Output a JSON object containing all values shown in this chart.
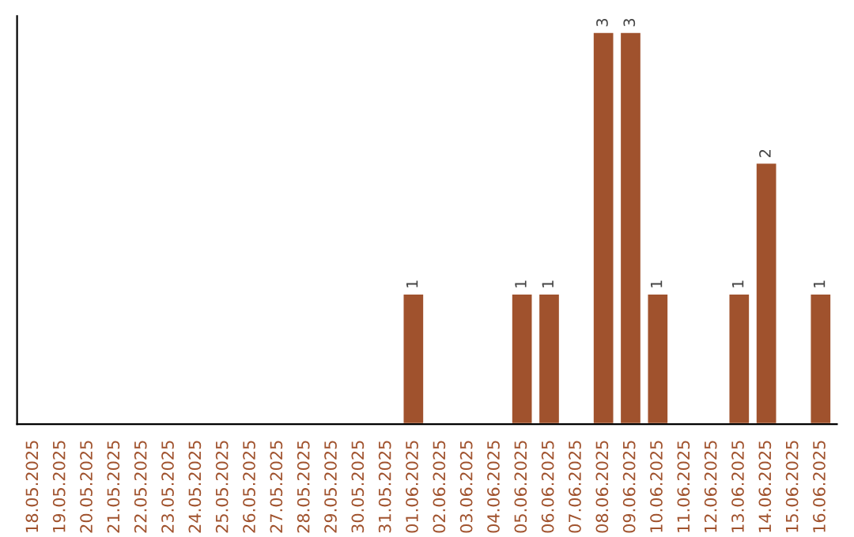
{
  "chart_data": {
    "type": "bar",
    "categories": [
      "18.05.2025",
      "19.05.2025",
      "20.05.2025",
      "21.05.2025",
      "22.05.2025",
      "23.05.2025",
      "24.05.2025",
      "25.05.2025",
      "26.05.2025",
      "27.05.2025",
      "28.05.2025",
      "29.05.2025",
      "30.05.2025",
      "31.05.2025",
      "01.06.2025",
      "02.06.2025",
      "03.06.2025",
      "04.06.2025",
      "05.06.2025",
      "06.06.2025",
      "07.06.2025",
      "08.06.2025",
      "09.06.2025",
      "10.06.2025",
      "11.06.2025",
      "12.06.2025",
      "13.06.2025",
      "14.06.2025",
      "15.06.2025",
      "16.06.2025"
    ],
    "values": [
      null,
      null,
      null,
      null,
      null,
      null,
      null,
      null,
      null,
      null,
      null,
      null,
      null,
      null,
      1,
      null,
      null,
      null,
      1,
      1,
      null,
      3,
      3,
      1,
      null,
      null,
      1,
      2,
      null,
      1
    ],
    "data_labels": true,
    "color": "#a0522d",
    "grid": false,
    "legend": false,
    "tick_labels": "x"
  }
}
